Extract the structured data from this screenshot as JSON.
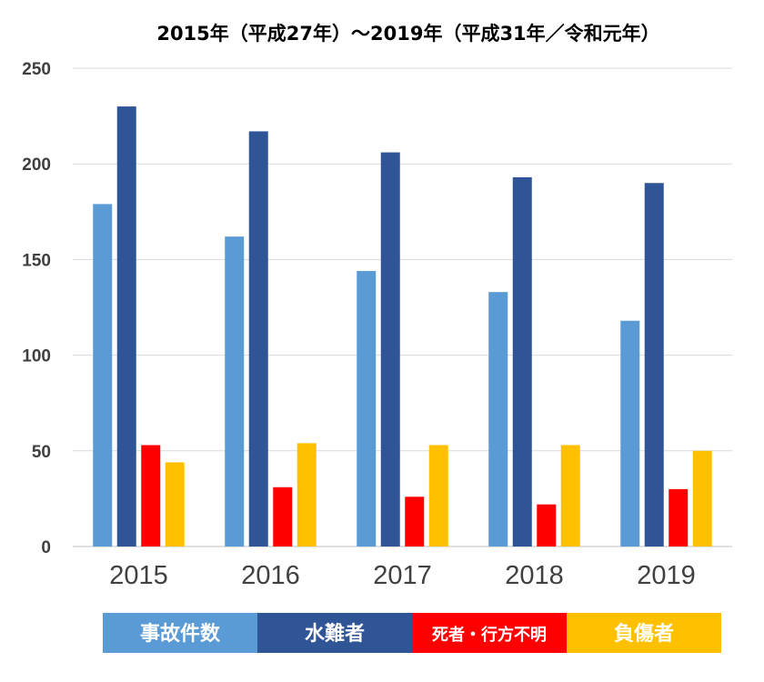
{
  "chart_data": {
    "type": "bar",
    "title": "2015年（平成27年）～2019年（平成31年／令和元年）",
    "categories": [
      "2015",
      "2016",
      "2017",
      "2018",
      "2019"
    ],
    "series": [
      {
        "name": "事故件数",
        "color": "#5b9bd5",
        "values": [
          179,
          162,
          144,
          133,
          118
        ]
      },
      {
        "name": "水難者",
        "color": "#2f5597",
        "values": [
          230,
          217,
          206,
          193,
          190
        ]
      },
      {
        "name": "死者・行方不明",
        "color": "#ff0000",
        "values": [
          53,
          31,
          26,
          22,
          30
        ]
      },
      {
        "name": "負傷者",
        "color": "#ffc000",
        "values": [
          44,
          54,
          53,
          53,
          50
        ]
      }
    ],
    "yticks": [
      "0",
      "50",
      "100",
      "150",
      "200",
      "250"
    ],
    "ylim": [
      0,
      250
    ],
    "grid": true,
    "legend_position": "bottom"
  }
}
